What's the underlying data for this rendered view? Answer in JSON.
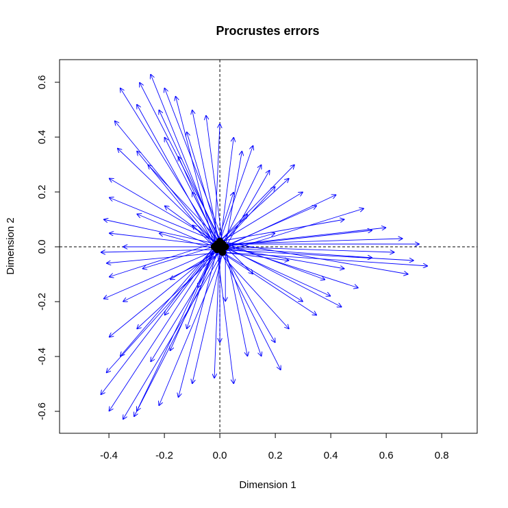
{
  "chart_data": {
    "type": "arrows",
    "title": "Procrustes errors",
    "x_label": "Dimension 1",
    "y_label": "Dimension 2",
    "xlim": [
      -0.578,
      0.928
    ],
    "ylim": [
      -0.68,
      0.6825
    ],
    "xticks": [
      -0.4,
      -0.2,
      {
        "value": 0,
        "label": "0.0"
      },
      0.2,
      0.4,
      0.6,
      0.8
    ],
    "yticks": [
      -0.6,
      -0.4,
      -0.2,
      {
        "value": 0,
        "label": "0.0"
      },
      0.2,
      0.4,
      0.6
    ],
    "hline": 0,
    "vline": 0,
    "color": "#0000ff",
    "point_color": "#000000",
    "arrows": [
      [
        0,
        0,
        -0.25,
        0.63
      ],
      [
        0.01,
        0.01,
        -0.29,
        0.6
      ],
      [
        -0.01,
        0.01,
        -0.36,
        0.58
      ],
      [
        0.02,
        0,
        -0.2,
        0.58
      ],
      [
        -0.01,
        -0.01,
        -0.3,
        0.52
      ],
      [
        0.01,
        -0.02,
        -0.38,
        0.46
      ],
      [
        0,
        0.02,
        -0.22,
        0.5
      ],
      [
        -0.02,
        0,
        -0.16,
        0.55
      ],
      [
        0,
        0,
        -0.1,
        0.5
      ],
      [
        0.01,
        0.01,
        -0.05,
        0.48
      ],
      [
        -0.01,
        0.01,
        -0.37,
        0.36
      ],
      [
        0.02,
        0,
        -0.4,
        0.25
      ],
      [
        -0.01,
        -0.01,
        -0.3,
        0.35
      ],
      [
        0.01,
        -0.02,
        -0.2,
        0.4
      ],
      [
        0,
        0.02,
        -0.12,
        0.42
      ],
      [
        -0.02,
        0,
        0,
        0.45
      ],
      [
        0,
        0,
        0.05,
        0.4
      ],
      [
        0.01,
        0.01,
        -0.26,
        0.3
      ],
      [
        -0.01,
        0.01,
        -0.15,
        0.33
      ],
      [
        0.02,
        0,
        0.08,
        0.35
      ],
      [
        -0.01,
        -0.01,
        0.12,
        0.37
      ],
      [
        0.01,
        -0.02,
        0.18,
        0.28
      ],
      [
        0,
        0.02,
        0.25,
        0.25
      ],
      [
        -0.02,
        0,
        0.27,
        0.3
      ],
      [
        0,
        0,
        0.2,
        0.22
      ],
      [
        0.01,
        0.01,
        0.15,
        0.3
      ],
      [
        -0.01,
        0.01,
        0.3,
        0.2
      ],
      [
        0.02,
        0,
        0.42,
        0.19
      ],
      [
        -0.01,
        -0.01,
        0.35,
        0.15
      ],
      [
        0.01,
        -0.02,
        0.52,
        0.14
      ],
      [
        0,
        0.02,
        0.45,
        0.1
      ],
      [
        -0.02,
        0,
        0.6,
        0.07
      ],
      [
        0,
        0,
        0.55,
        0.06
      ],
      [
        0.01,
        0.01,
        0.66,
        0.03
      ],
      [
        -0.01,
        0.01,
        0.72,
        0.01
      ],
      [
        0.02,
        0,
        0.63,
        -0.02
      ],
      [
        -0.01,
        -0.01,
        0.7,
        -0.05
      ],
      [
        0.01,
        -0.02,
        0.75,
        -0.07
      ],
      [
        0,
        0.02,
        0.68,
        -0.1
      ],
      [
        -0.02,
        0,
        0.55,
        -0.04
      ],
      [
        0,
        0,
        0.45,
        -0.08
      ],
      [
        0.01,
        0.01,
        0.5,
        -0.15
      ],
      [
        -0.01,
        0.01,
        0.4,
        -0.18
      ],
      [
        0.02,
        0,
        0.44,
        -0.22
      ],
      [
        -0.01,
        -0.01,
        0.35,
        -0.25
      ],
      [
        0.01,
        -0.02,
        0.3,
        -0.2
      ],
      [
        0,
        0.02,
        0.38,
        -0.12
      ],
      [
        -0.02,
        0,
        0.25,
        -0.3
      ],
      [
        0,
        0,
        0.2,
        -0.35
      ],
      [
        0.01,
        0.01,
        0.15,
        -0.4
      ],
      [
        -0.01,
        0.01,
        0.22,
        -0.45
      ],
      [
        0.02,
        0,
        0.1,
        -0.4
      ],
      [
        -0.01,
        -0.01,
        0.05,
        -0.5
      ],
      [
        0.01,
        -0.02,
        -0.35,
        -0.63
      ],
      [
        0,
        0.02,
        -0.4,
        -0.6
      ],
      [
        -0.02,
        0,
        -0.43,
        -0.54
      ],
      [
        0,
        0,
        -0.41,
        -0.46
      ],
      [
        0.01,
        0.01,
        -0.31,
        -0.62
      ],
      [
        -0.01,
        0.01,
        -0.3,
        -0.6
      ],
      [
        0.02,
        0,
        -0.22,
        -0.58
      ],
      [
        -0.01,
        -0.01,
        -0.15,
        -0.55
      ],
      [
        0.01,
        -0.02,
        -0.1,
        -0.5
      ],
      [
        0,
        0.02,
        -0.02,
        -0.48
      ],
      [
        -0.02,
        0,
        -0.36,
        -0.4
      ],
      [
        0,
        0,
        -0.4,
        -0.33
      ],
      [
        0.01,
        0.01,
        -0.25,
        -0.42
      ],
      [
        -0.01,
        0.01,
        -0.18,
        -0.38
      ],
      [
        0.02,
        0,
        -0.3,
        -0.3
      ],
      [
        -0.01,
        -0.01,
        -0.42,
        -0.19
      ],
      [
        0.01,
        -0.02,
        -0.35,
        -0.2
      ],
      [
        0,
        0.02,
        -0.2,
        -0.25
      ],
      [
        -0.02,
        0,
        -0.12,
        -0.3
      ],
      [
        0,
        0,
        0,
        -0.35
      ],
      [
        0.01,
        0.01,
        -0.4,
        0.18
      ],
      [
        -0.01,
        0.01,
        -0.42,
        0.1
      ],
      [
        0.02,
        0,
        -0.4,
        0.05
      ],
      [
        -0.01,
        -0.01,
        -0.43,
        -0.02
      ],
      [
        0.01,
        -0.02,
        -0.41,
        -0.06
      ],
      [
        0,
        0.02,
        -0.4,
        -0.11
      ],
      [
        -0.02,
        0,
        -0.3,
        0.12
      ],
      [
        0,
        0,
        -0.35,
        0
      ],
      [
        0.01,
        0.01,
        -0.28,
        -0.08
      ],
      [
        -0.01,
        0.01,
        -0.2,
        0.15
      ],
      [
        0.02,
        0,
        -0.18,
        -0.12
      ],
      [
        -0.01,
        -0.01,
        -0.22,
        0.05
      ],
      [
        0.01,
        -0.02,
        -0.1,
        0.2
      ],
      [
        0,
        0.02,
        -0.08,
        -0.15
      ],
      [
        -0.02,
        0,
        -0.1,
        0.08
      ],
      [
        0,
        0,
        0.1,
        0.12
      ],
      [
        0.01,
        0.01,
        0.12,
        -0.1
      ],
      [
        -0.01,
        0.01,
        0.05,
        0.2
      ],
      [
        0.02,
        0,
        0.02,
        -0.2
      ],
      [
        -0.01,
        -0.01,
        0.2,
        0.05
      ],
      [
        0.01,
        -0.02,
        0.25,
        -0.05
      ]
    ]
  }
}
